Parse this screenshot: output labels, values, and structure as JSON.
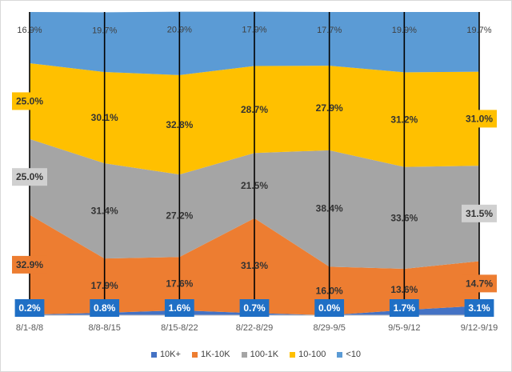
{
  "chart_data": {
    "type": "area",
    "stacked": true,
    "percent": true,
    "categories": [
      "8/1-8/8",
      "8/8-8/15",
      "8/15-8/22",
      "8/22-8/29",
      "8/29-9/5",
      "9/5-9/12",
      "9/12-9/19"
    ],
    "series": [
      {
        "name": "10K+",
        "color": "#4472C4",
        "values": [
          0.2,
          0.8,
          1.6,
          0.7,
          0.0,
          1.7,
          3.1
        ],
        "labels": [
          "0.2%",
          "0.8%",
          "1.6%",
          "0.7%",
          "0.0%",
          "1.7%",
          "3.1%"
        ]
      },
      {
        "name": "1K-10K",
        "color": "#ED7D31",
        "values": [
          32.9,
          17.9,
          17.6,
          31.3,
          16.0,
          13.6,
          14.7
        ],
        "labels": [
          "32.9%",
          "17.9%",
          "17.6%",
          "31.3%",
          "16.0%",
          "13.6%",
          "14.7%"
        ]
      },
      {
        "name": "100-1K",
        "color": "#A5A5A5",
        "values": [
          25.0,
          31.4,
          27.2,
          21.5,
          38.4,
          33.6,
          31.5
        ],
        "labels": [
          "25.0%",
          "31.4%",
          "27.2%",
          "21.5%",
          "38.4%",
          "33.6%",
          "31.5%"
        ]
      },
      {
        "name": "10-100",
        "color": "#FFC000",
        "values": [
          25.0,
          30.1,
          32.8,
          28.7,
          27.9,
          31.2,
          31.0
        ],
        "labels": [
          "25.0%",
          "30.1%",
          "32.8%",
          "28.7%",
          "27.9%",
          "31.2%",
          "31.0%"
        ]
      },
      {
        "name": "<10",
        "color": "#5B9BD5",
        "values": [
          16.9,
          19.7,
          20.9,
          17.9,
          17.7,
          19.9,
          19.7
        ],
        "labels": [
          "16.9%",
          "19.7%",
          "20.9%",
          "17.9%",
          "17.7%",
          "19.9%",
          "19.7%"
        ]
      }
    ],
    "ylim": [
      0,
      100
    ],
    "title": "",
    "xlabel": "",
    "ylabel": "",
    "grid": false,
    "legend": "bottom"
  }
}
